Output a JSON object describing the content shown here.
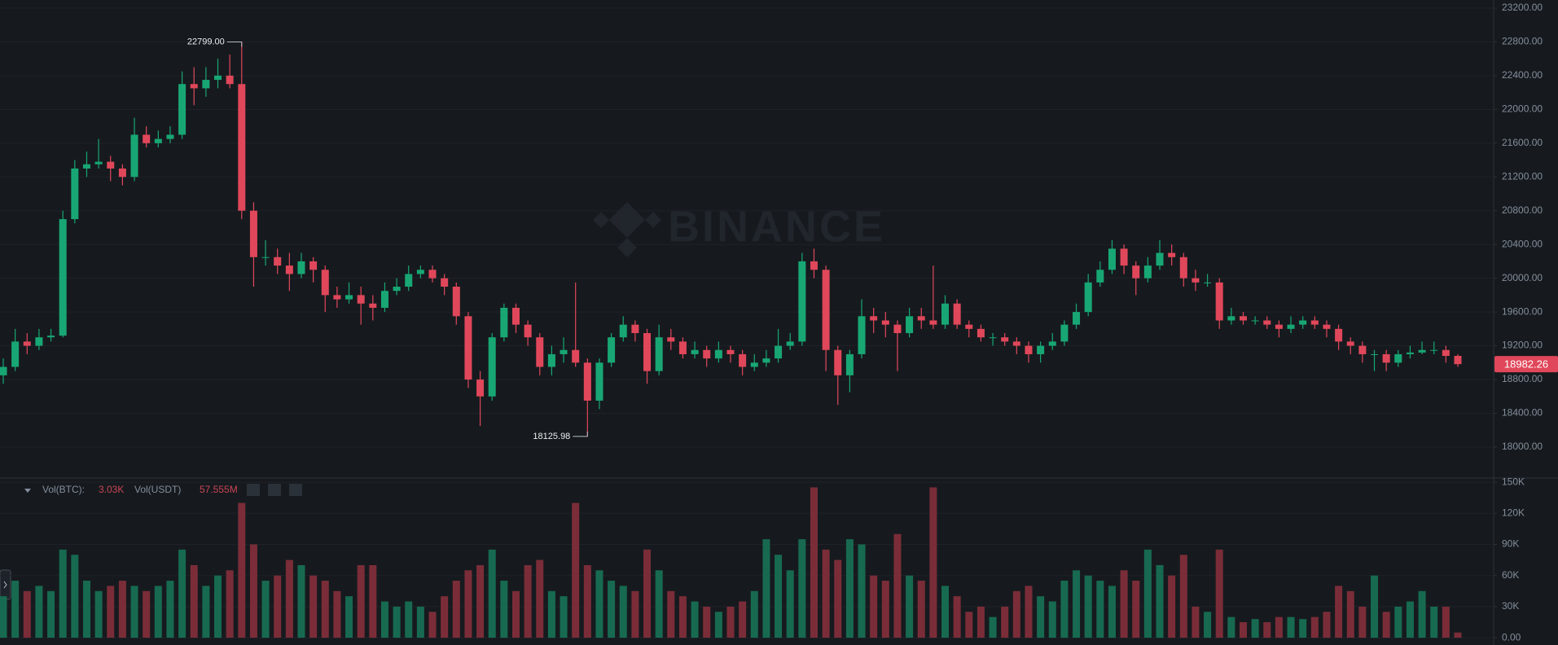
{
  "chart_data": {
    "type": "candlestick",
    "watermark": "BINANCE",
    "high_label": "22799.00",
    "low_label": "18125.98",
    "volume_legend": {
      "label1": "Vol(BTC):",
      "value1": "3.03K",
      "label2": "Vol(USDT)",
      "value2": "57.555M"
    },
    "up_color": "#18a774",
    "down_color": "#e0475a",
    "volume_up_color": "#176a50",
    "volume_down_color": "#7a2d38",
    "grid": true,
    "ylim": [
      17633,
      23296
    ],
    "yticks": [
      {
        "value": 18000,
        "label": "18000.00"
      },
      {
        "value": 18400,
        "label": "18400.00"
      },
      {
        "value": 18800,
        "label": "18800.00"
      },
      {
        "value": 19200,
        "label": "19200.00"
      },
      {
        "value": 19600,
        "label": "19600.00"
      },
      {
        "value": 20000,
        "label": "20000.00"
      },
      {
        "value": 20400,
        "label": "20400.00"
      },
      {
        "value": 20800,
        "label": "20800.00"
      },
      {
        "value": 21200,
        "label": "21200.00"
      },
      {
        "value": 21600,
        "label": "21600.00"
      },
      {
        "value": 22000,
        "label": "22000.00"
      },
      {
        "value": 22400,
        "label": "22400.00"
      },
      {
        "value": 22800,
        "label": "22800.00"
      },
      {
        "value": 23200,
        "label": "23200.00"
      }
    ],
    "volume_ylim": [
      -7000,
      154000
    ],
    "volume_yticks": [
      {
        "value": 0,
        "label": "0.00"
      },
      {
        "value": 30000,
        "label": "30K"
      },
      {
        "value": 60000,
        "label": "60K"
      },
      {
        "value": 90000,
        "label": "90K"
      },
      {
        "value": 120000,
        "label": "120K"
      },
      {
        "value": 150000,
        "label": "150K"
      }
    ],
    "open": [
      18850,
      18950,
      19250,
      19200,
      19300,
      19320,
      20700,
      21300,
      21350,
      21380,
      21300,
      21200,
      21700,
      21600,
      21650,
      21700,
      22300,
      22250,
      22350,
      22400,
      22300,
      20800,
      20250,
      20250,
      20150,
      20050,
      20200,
      20100,
      19800,
      19750,
      19800,
      19700,
      19650,
      19850,
      19900,
      20050,
      20100,
      20000,
      19900,
      19550,
      18800,
      18600,
      19300,
      19650,
      19450,
      19300,
      18950,
      19100,
      19150,
      19000,
      18550,
      19000,
      19300,
      19450,
      19350,
      18900,
      19300,
      19250,
      19100,
      19150,
      19050,
      19150,
      19100,
      18950,
      19000,
      19050,
      19200,
      19250,
      20200,
      20100,
      19150,
      18850,
      19100,
      19550,
      19500,
      19450,
      19350,
      19550,
      19500,
      19450,
      19700,
      19450,
      19400,
      19300,
      19300,
      19250,
      19200,
      19100,
      19200,
      19250,
      19450,
      19600,
      19950,
      20100,
      20350,
      20150,
      20000,
      20150,
      20300,
      20250,
      20000,
      19950,
      19950,
      19500,
      19550,
      19500,
      19500,
      19450,
      19400,
      19450,
      19500,
      19450,
      19400,
      19250,
      19200,
      19100,
      19100,
      19000,
      19100,
      19120,
      19150,
      19150,
      19080
    ],
    "high": [
      19050,
      19400,
      19350,
      19400,
      19400,
      20800,
      21400,
      21500,
      21650,
      21450,
      21350,
      21900,
      21800,
      21750,
      21800,
      22450,
      22500,
      22500,
      22600,
      22650,
      22799,
      20900,
      20450,
      20350,
      20300,
      20300,
      20250,
      20150,
      19900,
      19950,
      19900,
      19800,
      19950,
      20000,
      20150,
      20150,
      20150,
      20050,
      19950,
      19600,
      18900,
      19350,
      19700,
      19700,
      19500,
      19350,
      19200,
      19300,
      19950,
      19050,
      19050,
      19350,
      19550,
      19500,
      19400,
      19450,
      19400,
      19300,
      19250,
      19200,
      19250,
      19200,
      19150,
      19100,
      19150,
      19400,
      19350,
      20300,
      20350,
      20150,
      19200,
      19150,
      19750,
      19650,
      19600,
      19500,
      19650,
      19650,
      20150,
      19800,
      19750,
      19500,
      19450,
      19350,
      19350,
      19300,
      19250,
      19250,
      19350,
      19500,
      19700,
      20050,
      20200,
      20450,
      20400,
      20200,
      20250,
      20450,
      20400,
      20300,
      20100,
      20050,
      20000,
      19650,
      19600,
      19550,
      19550,
      19500,
      19550,
      19550,
      19550,
      19500,
      19450,
      19300,
      19250,
      19150,
      19150,
      19150,
      19200,
      19250,
      19250,
      19200,
      19100
    ],
    "low": [
      18750,
      18900,
      19100,
      19150,
      19250,
      19300,
      20650,
      21200,
      21300,
      21150,
      21100,
      21150,
      21550,
      21550,
      21600,
      21650,
      22050,
      22150,
      22250,
      22250,
      20700,
      19900,
      20150,
      20050,
      19850,
      20000,
      19950,
      19600,
      19650,
      19700,
      19450,
      19500,
      19600,
      19800,
      19850,
      20000,
      19950,
      19800,
      19450,
      18700,
      18250,
      18550,
      19250,
      19350,
      19200,
      18850,
      18850,
      19000,
      18950,
      18125.98,
      18450,
      18950,
      19250,
      19250,
      18750,
      18850,
      19150,
      19050,
      19050,
      18950,
      19000,
      19000,
      18850,
      18900,
      18950,
      19000,
      19150,
      19200,
      20000,
      18900,
      18500,
      18650,
      19050,
      19350,
      19300,
      18900,
      19300,
      19400,
      19400,
      19400,
      19400,
      19300,
      19250,
      19200,
      19200,
      19100,
      19000,
      19000,
      19150,
      19200,
      19400,
      19550,
      19900,
      20050,
      20050,
      19800,
      19950,
      20100,
      20150,
      19900,
      19850,
      19900,
      19400,
      19450,
      19450,
      19450,
      19400,
      19300,
      19350,
      19400,
      19400,
      19300,
      19150,
      19100,
      19000,
      18900,
      18900,
      18950,
      19050,
      19100,
      19100,
      19000,
      18950
    ],
    "close": [
      18950,
      19250,
      19200,
      19300,
      19320,
      20700,
      21300,
      21350,
      21380,
      21300,
      21200,
      21700,
      21600,
      21650,
      21700,
      22300,
      22250,
      22350,
      22400,
      22300,
      20800,
      20250,
      20250,
      20150,
      20050,
      20200,
      20100,
      19800,
      19750,
      19800,
      19700,
      19650,
      19850,
      19900,
      20050,
      20100,
      20000,
      19900,
      19550,
      18800,
      18600,
      19300,
      19650,
      19450,
      19300,
      18950,
      19100,
      19150,
      19000,
      18550,
      19000,
      19300,
      19450,
      19350,
      18900,
      19300,
      19250,
      19100,
      19150,
      19050,
      19150,
      19100,
      18950,
      19000,
      19050,
      19200,
      19250,
      20200,
      20100,
      19150,
      18850,
      19100,
      19550,
      19500,
      19450,
      19350,
      19550,
      19500,
      19450,
      19700,
      19450,
      19400,
      19300,
      19300,
      19250,
      19200,
      19100,
      19200,
      19250,
      19450,
      19600,
      19950,
      20100,
      20350,
      20150,
      20000,
      20150,
      20300,
      20250,
      20000,
      19950,
      19950,
      19500,
      19550,
      19500,
      19500,
      19450,
      19400,
      19450,
      19500,
      19450,
      19400,
      19250,
      19200,
      19100,
      19100,
      19000,
      19100,
      19120,
      19150,
      19150,
      19080,
      18982.26
    ],
    "volume": [
      40000,
      55000,
      45000,
      50000,
      45000,
      85000,
      80000,
      55000,
      45000,
      50000,
      55000,
      50000,
      45000,
      50000,
      55000,
      85000,
      70000,
      50000,
      60000,
      65000,
      130000,
      90000,
      55000,
      60000,
      75000,
      70000,
      60000,
      55000,
      45000,
      40000,
      70000,
      70000,
      35000,
      30000,
      35000,
      30000,
      25000,
      40000,
      55000,
      65000,
      70000,
      85000,
      55000,
      45000,
      70000,
      75000,
      45000,
      40000,
      130000,
      70000,
      65000,
      55000,
      50000,
      45000,
      85000,
      65000,
      45000,
      40000,
      35000,
      30000,
      25000,
      30000,
      35000,
      45000,
      95000,
      80000,
      65000,
      95000,
      145000,
      85000,
      75000,
      95000,
      90000,
      60000,
      55000,
      100000,
      60000,
      55000,
      145000,
      50000,
      40000,
      25000,
      30000,
      20000,
      30000,
      45000,
      50000,
      40000,
      35000,
      55000,
      65000,
      60000,
      55000,
      50000,
      65000,
      55000,
      85000,
      70000,
      60000,
      80000,
      30000,
      25000,
      85000,
      20000,
      15000,
      18000,
      15000,
      20000,
      20000,
      18000,
      20000,
      25000,
      50000,
      45000,
      30000,
      60000,
      25000,
      30000,
      35000,
      45000,
      30000,
      30000,
      5000
    ]
  }
}
